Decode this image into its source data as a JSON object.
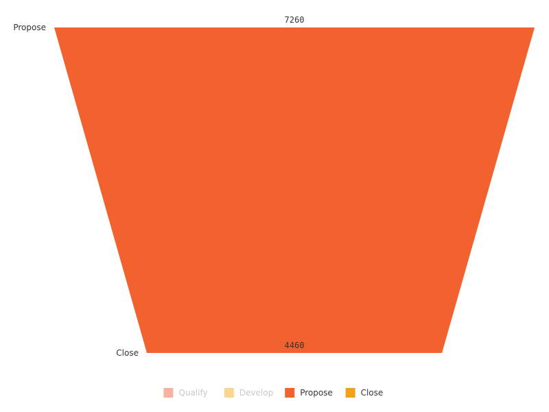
{
  "chart_data": {
    "type": "funnel",
    "stages": [
      {
        "name": "Propose",
        "value": 7260
      },
      {
        "name": "Close",
        "value": 4460
      }
    ],
    "legend": {
      "position": "bottom",
      "items": [
        {
          "name": "Qualify",
          "color": "#F9B29D",
          "active": false
        },
        {
          "name": "Develop",
          "color": "#FBD78E",
          "active": false
        },
        {
          "name": "Propose",
          "color": "#F2622E",
          "active": true
        },
        {
          "name": "Close",
          "color": "#F2A11A",
          "active": true
        }
      ]
    },
    "funnel_color": "#F2622E",
    "label_color": "#333333",
    "inactive_text_color": "#c8c8c8"
  }
}
